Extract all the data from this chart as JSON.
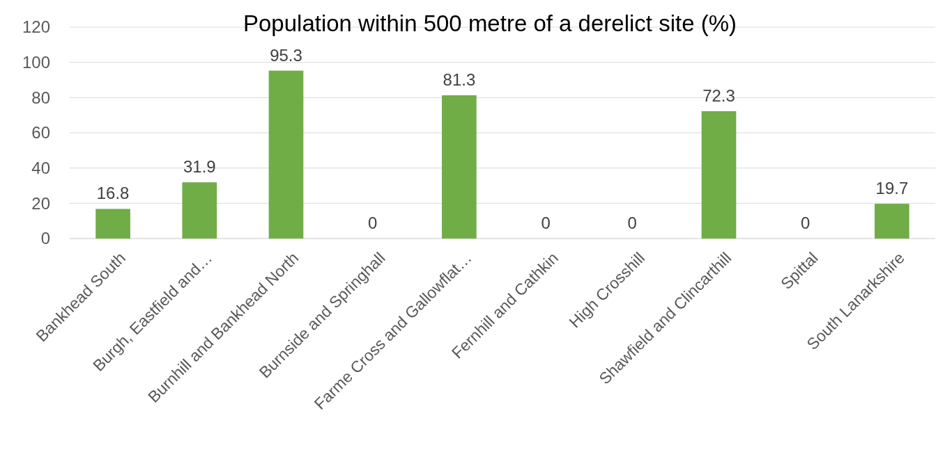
{
  "chart_data": {
    "type": "bar",
    "title": "Population within 500 metre of a derelict site (%)",
    "categories": [
      "Bankhead South",
      "Burgh, Eastfield and…",
      "Burnhill and Bankhead North",
      "Burnside and Springhall",
      "Farme Cross and Gallowflat…",
      "Fernhill and Cathkin",
      "High Crosshill",
      "Shawfield and Clincarthill",
      "Spittal",
      "South Lanarkshire"
    ],
    "values": [
      16.8,
      31.9,
      95.3,
      0,
      81.3,
      0,
      0,
      72.3,
      0,
      19.7
    ],
    "color": "#70ad47",
    "ylim": [
      0,
      120
    ],
    "yticks": [
      0,
      20,
      40,
      60,
      80,
      100,
      120
    ],
    "grid": "y",
    "data_labels": true
  }
}
